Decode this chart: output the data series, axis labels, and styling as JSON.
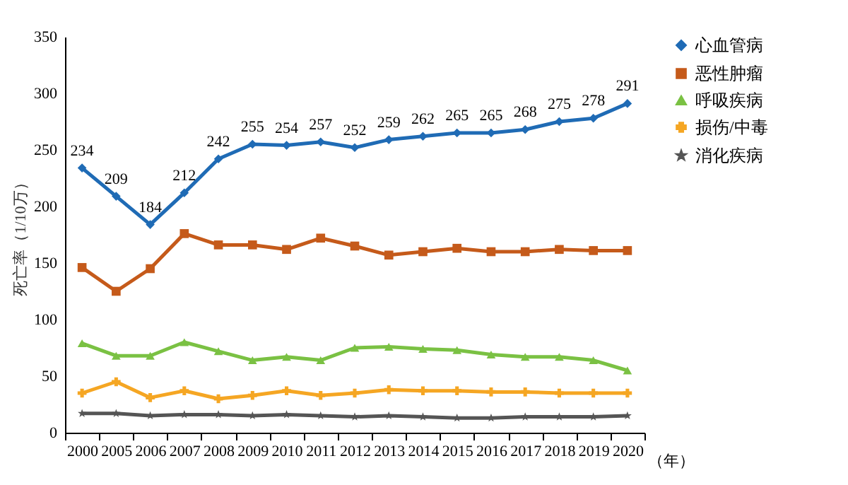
{
  "chart_data": {
    "type": "line",
    "xlabel": "（年）",
    "ylabel": "死亡率（1/10万）",
    "categories": [
      "2000",
      "2005",
      "2006",
      "2007",
      "2008",
      "2009",
      "2010",
      "2011",
      "2012",
      "2013",
      "2014",
      "2015",
      "2016",
      "2017",
      "2018",
      "2019",
      "2020"
    ],
    "ylim": [
      0,
      350
    ],
    "yticks": [
      0,
      50,
      100,
      150,
      200,
      250,
      300,
      350
    ],
    "grid": false,
    "legend": "top right",
    "series": [
      {
        "name": "心血管病",
        "color": "#1f6bb5",
        "marker": "diamond",
        "values": [
          234,
          209,
          184,
          212,
          242,
          255,
          254,
          257,
          252,
          259,
          262,
          265,
          265,
          268,
          275,
          278,
          291
        ],
        "value_labels": [
          "234",
          "209",
          "184",
          "212",
          "242",
          "255",
          "254",
          "257",
          "252",
          "259",
          "262",
          "265",
          "265",
          "268",
          "275",
          "278",
          "291"
        ]
      },
      {
        "name": "恶性肿瘤",
        "color": "#c55a1a",
        "marker": "square",
        "values": [
          146,
          125,
          145,
          176,
          166,
          166,
          162,
          172,
          165,
          157,
          160,
          163,
          160,
          160,
          162,
          161,
          161
        ]
      },
      {
        "name": "呼吸疾病",
        "color": "#7ac143",
        "marker": "triangle",
        "values": [
          79,
          68,
          68,
          80,
          72,
          64,
          67,
          64,
          75,
          76,
          74,
          73,
          69,
          67,
          67,
          64,
          55
        ]
      },
      {
        "name": "损伤/中毒",
        "color": "#f5a623",
        "marker": "cross",
        "values": [
          35,
          45,
          31,
          37,
          30,
          33,
          37,
          33,
          35,
          38,
          37,
          37,
          36,
          36,
          35,
          35,
          35
        ]
      },
      {
        "name": "消化疾病",
        "color": "#555555",
        "marker": "star",
        "values": [
          17,
          17,
          15,
          16,
          16,
          15,
          16,
          15,
          14,
          15,
          14,
          13,
          13,
          14,
          14,
          14,
          15
        ]
      }
    ]
  }
}
